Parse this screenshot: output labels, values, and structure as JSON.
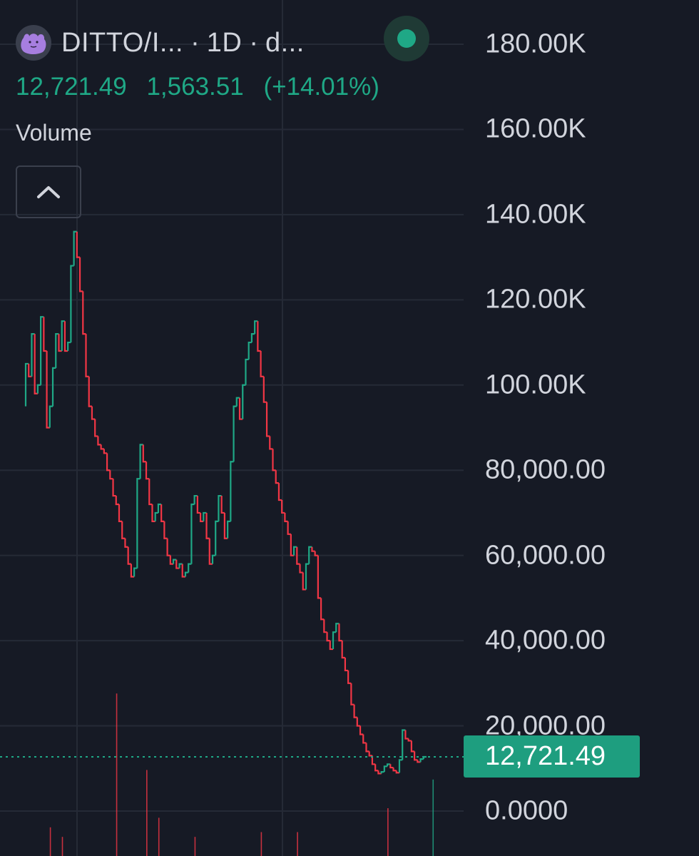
{
  "header": {
    "symbol": "DITTO/I...",
    "interval": "1D",
    "source": "d...",
    "separator": "·"
  },
  "quote": {
    "price": "12,721.49",
    "change": "1,563.51",
    "change_pct": "(+14.01%)"
  },
  "volume_label": "Volume",
  "icons": {
    "logo": "ditto-logo-icon",
    "status": "market-open-dot-icon",
    "collapse": "chevron-up-icon"
  },
  "colors": {
    "background": "#161a25",
    "up": "#1fa886",
    "down": "#f23645",
    "grid": "#252a36",
    "text": "#d1d4dc",
    "badge": "#1e9e7f"
  },
  "chart_data": {
    "type": "line",
    "title": "",
    "xlabel": "",
    "ylabel": "",
    "ylim": [
      -4000,
      185000
    ],
    "y_ticks": [
      "180.00K",
      "160.00K",
      "140.00K",
      "120.00K",
      "100.00K",
      "80,000.00",
      "60,000.00",
      "40,000.00",
      "20,000.00",
      "0.0000"
    ],
    "y_tick_values": [
      180000,
      160000,
      140000,
      120000,
      100000,
      80000,
      60000,
      40000,
      20000,
      0
    ],
    "last_price": 12721.49,
    "last_price_label": "12,721.49",
    "series": [
      {
        "values": [
          95000,
          105000,
          102000,
          112000,
          98000,
          100000,
          116000,
          108000,
          90000,
          95000,
          104000,
          112000,
          108000,
          115000,
          108000,
          110000,
          128000,
          136000,
          130000,
          122000,
          112000,
          102000,
          95000,
          92000,
          88000,
          86000,
          85000,
          84000,
          80000,
          78000,
          74000,
          72000,
          68000,
          64000,
          62000,
          58000,
          55000,
          57000,
          78000,
          86000,
          82000,
          78000,
          72000,
          68000,
          70000,
          72000,
          68000,
          64000,
          60000,
          58000,
          59000,
          57000,
          58000,
          55000,
          56000,
          58000,
          72000,
          74000,
          70000,
          68000,
          70000,
          64000,
          58000,
          60000,
          68000,
          74000,
          70000,
          64000,
          68000,
          82000,
          95000,
          97000,
          92000,
          100000,
          106000,
          110000,
          112000,
          115000,
          108000,
          102000,
          96000,
          88000,
          85000,
          80000,
          77000,
          73000,
          70000,
          68000,
          65000,
          60000,
          62000,
          58000,
          56000,
          52000,
          58000,
          62000,
          61000,
          60000,
          50000,
          45000,
          42000,
          40000,
          38000,
          42000,
          44000,
          40000,
          36000,
          33000,
          30000,
          25000,
          22000,
          20000,
          18000,
          16000,
          14000,
          13000,
          11000,
          9500,
          8800,
          9200,
          10500,
          11000,
          10200,
          9500,
          9000,
          12000,
          19000,
          17000,
          16500,
          14000,
          12000,
          11500,
          12200,
          12721
        ]
      }
    ],
    "volume": [
      {
        "bar": 40,
        "value": 18
      },
      {
        "bar": 8,
        "value": 6
      },
      {
        "bar": 44,
        "value": 8
      },
      {
        "bar": 90,
        "value": 5
      },
      {
        "bar": 12,
        "value": 4
      },
      {
        "bar": 30,
        "value": 34
      },
      {
        "bar": 56,
        "value": 4
      },
      {
        "bar": 78,
        "value": 5
      },
      {
        "bar": 120,
        "value": 10
      },
      {
        "bar": 135,
        "value": 16
      }
    ]
  }
}
